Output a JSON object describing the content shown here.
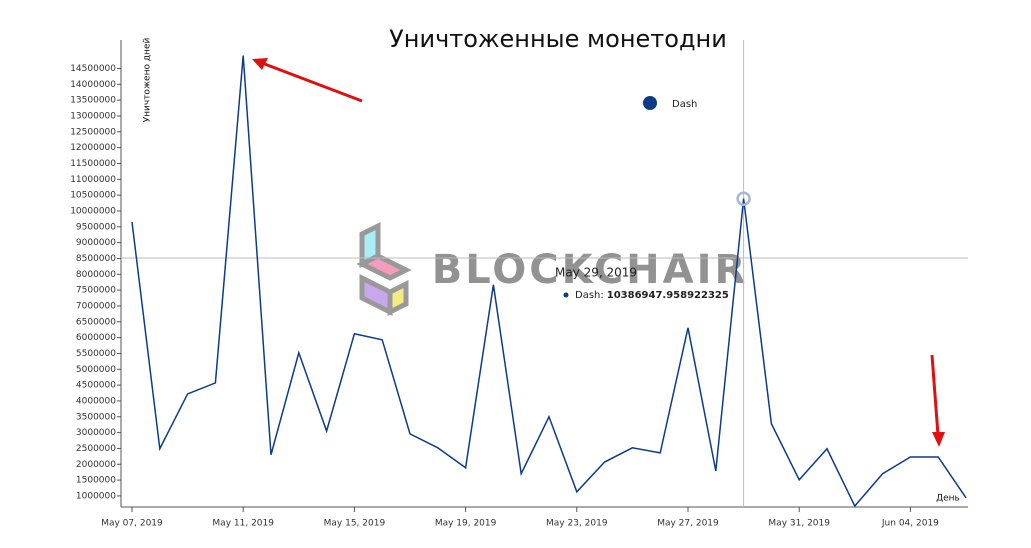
{
  "chart_data": {
    "type": "line",
    "title": "Уничтоженные монетодни",
    "y_label": "Уничтожено дней",
    "x_label": "День",
    "x": [
      "May 07, 2019",
      "May 08, 2019",
      "May 09, 2019",
      "May 10, 2019",
      "May 11, 2019",
      "May 12, 2019",
      "May 13, 2019",
      "May 14, 2019",
      "May 15, 2019",
      "May 16, 2019",
      "May 17, 2019",
      "May 18, 2019",
      "May 19, 2019",
      "May 20, 2019",
      "May 21, 2019",
      "May 22, 2019",
      "May 23, 2019",
      "May 24, 2019",
      "May 25, 2019",
      "May 26, 2019",
      "May 27, 2019",
      "May 28, 2019",
      "May 29, 2019",
      "May 30, 2019",
      "May 31, 2019",
      "Jun 01, 2019",
      "Jun 02, 2019",
      "Jun 03, 2019",
      "Jun 04, 2019",
      "Jun 05, 2019",
      "Jun 06, 2019"
    ],
    "xticks": [
      "May 07, 2019",
      "May 11, 2019",
      "May 15, 2019",
      "May 19, 2019",
      "May 23, 2019",
      "May 27, 2019",
      "May 31, 2019",
      "Jun 04, 2019"
    ],
    "series": [
      {
        "name": "Dash",
        "color": "#0d3b8c",
        "values": [
          9650000,
          2490000,
          4220000,
          4570000,
          14910000,
          2300000,
          5520000,
          3050000,
          6120000,
          5930000,
          2960000,
          2520000,
          1890000,
          7670000,
          1700000,
          3500000,
          1130000,
          2070000,
          2520000,
          2360000,
          6310000,
          1790000,
          10386947.958922325,
          3280000,
          1510000,
          2490000,
          680000,
          1700000,
          2230000,
          2230000,
          940000
        ]
      }
    ],
    "ylim": [
      650000,
      15400000
    ],
    "yticks": [
      1000000,
      1500000,
      2000000,
      2500000,
      3000000,
      3500000,
      4000000,
      4500000,
      5000000,
      5500000,
      6000000,
      6500000,
      7000000,
      7500000,
      8000000,
      8500000,
      9000000,
      9500000,
      10000000,
      10500000,
      11000000,
      11500000,
      12000000,
      12500000,
      13000000,
      13500000,
      14000000,
      14500000
    ],
    "tooltip": {
      "date": "May 29, 2019",
      "label": "Dash:",
      "value_label": "10386947.958922325"
    },
    "watermark": "BLOCKCHAIR"
  }
}
